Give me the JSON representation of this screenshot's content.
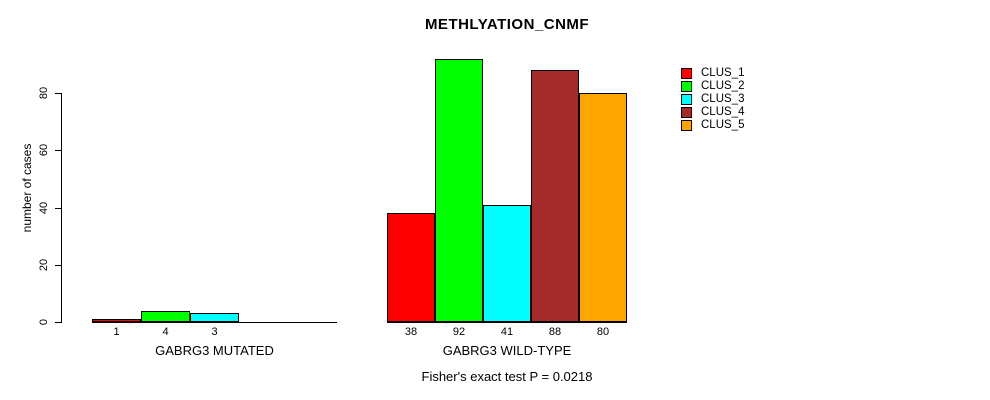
{
  "title": "METHLYATION_CNMF",
  "chart_data": {
    "type": "bar",
    "title": "METHLYATION_CNMF",
    "ylabel": "number of cases",
    "xlabel": "",
    "yticks": [
      0,
      20,
      40,
      60,
      80
    ],
    "ylim": [
      0,
      92
    ],
    "grid": false,
    "legend_position": "right",
    "categories": [
      "GABRG3 MUTATED",
      "GABRG3 WILD-TYPE"
    ],
    "series": [
      {
        "name": "CLUS_1",
        "color": "#FF0000",
        "values": [
          1,
          38
        ]
      },
      {
        "name": "CLUS_2",
        "color": "#00FF00",
        "values": [
          4,
          92
        ]
      },
      {
        "name": "CLUS_3",
        "color": "#00FFFF",
        "values": [
          3,
          41
        ]
      },
      {
        "name": "CLUS_4",
        "color": "#A52A2A",
        "values": [
          0,
          88
        ]
      },
      {
        "name": "CLUS_5",
        "color": "#FFA500",
        "values": [
          0,
          80
        ]
      }
    ],
    "bar_value_labels": [
      [
        "1",
        "4",
        "3",
        "",
        ""
      ],
      [
        "38",
        "92",
        "41",
        "88",
        "80"
      ]
    ],
    "caption": "Fisher's exact test P = 0.0218"
  }
}
